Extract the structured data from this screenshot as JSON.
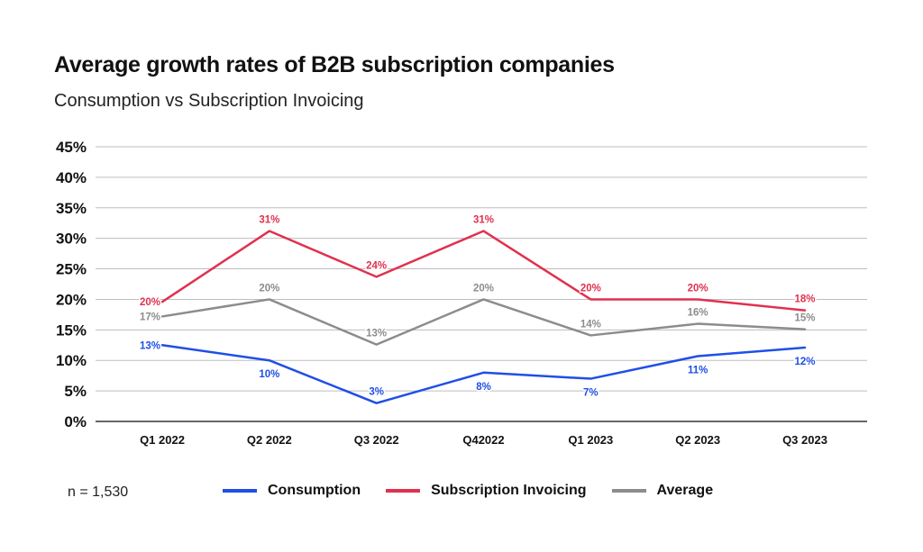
{
  "title": "Average growth rates of B2B subscription companies",
  "subtitle": "Consumption vs Subscription Invoicing",
  "note": "n = 1,530",
  "chart_data": {
    "type": "line",
    "title": "Average growth rates of B2B subscription companies",
    "subtitle": "Consumption vs Subscription Invoicing",
    "xlabel": "",
    "ylabel": "",
    "categories": [
      "Q1 2022",
      "Q2 2022",
      "Q3 2022",
      "Q42022",
      "Q1 2023",
      "Q2 2023",
      "Q3 2023"
    ],
    "ylim": [
      0,
      45
    ],
    "yticks": [
      0,
      5,
      10,
      15,
      20,
      25,
      30,
      35,
      40,
      45
    ],
    "ytick_labels": [
      "0%",
      "5%",
      "10%",
      "15%",
      "20%",
      "25%",
      "30%",
      "35%",
      "40%",
      "45%"
    ],
    "grid": true,
    "legend_position": "bottom",
    "series": [
      {
        "name": "Consumption",
        "color": "#1f4fe6",
        "values": [
          12.5,
          10,
          3,
          8,
          7,
          10.7,
          12.1
        ],
        "labels": [
          "13%",
          "10%",
          "3%",
          "8%",
          "7%",
          "11%",
          "12%"
        ],
        "label_position": [
          "center",
          "below",
          "above",
          "below",
          "below",
          "below",
          "below"
        ]
      },
      {
        "name": "Subscription Invoicing",
        "color": "#e0314f",
        "values": [
          19.6,
          31.2,
          23.7,
          31.2,
          20,
          20,
          18.2
        ],
        "labels": [
          "20%",
          "31%",
          "24%",
          "31%",
          "20%",
          "20%",
          "18%"
        ],
        "label_position": [
          "center",
          "above",
          "above",
          "above",
          "above",
          "above",
          "above"
        ]
      },
      {
        "name": "Average",
        "color": "#8c8c8c",
        "values": [
          17.2,
          20,
          12.6,
          20,
          14.1,
          16,
          15.1
        ],
        "labels": [
          "17%",
          "20%",
          "13%",
          "20%",
          "14%",
          "16%",
          "15%"
        ],
        "label_position": [
          "center",
          "above",
          "above",
          "above",
          "above",
          "above",
          "above"
        ]
      }
    ]
  }
}
